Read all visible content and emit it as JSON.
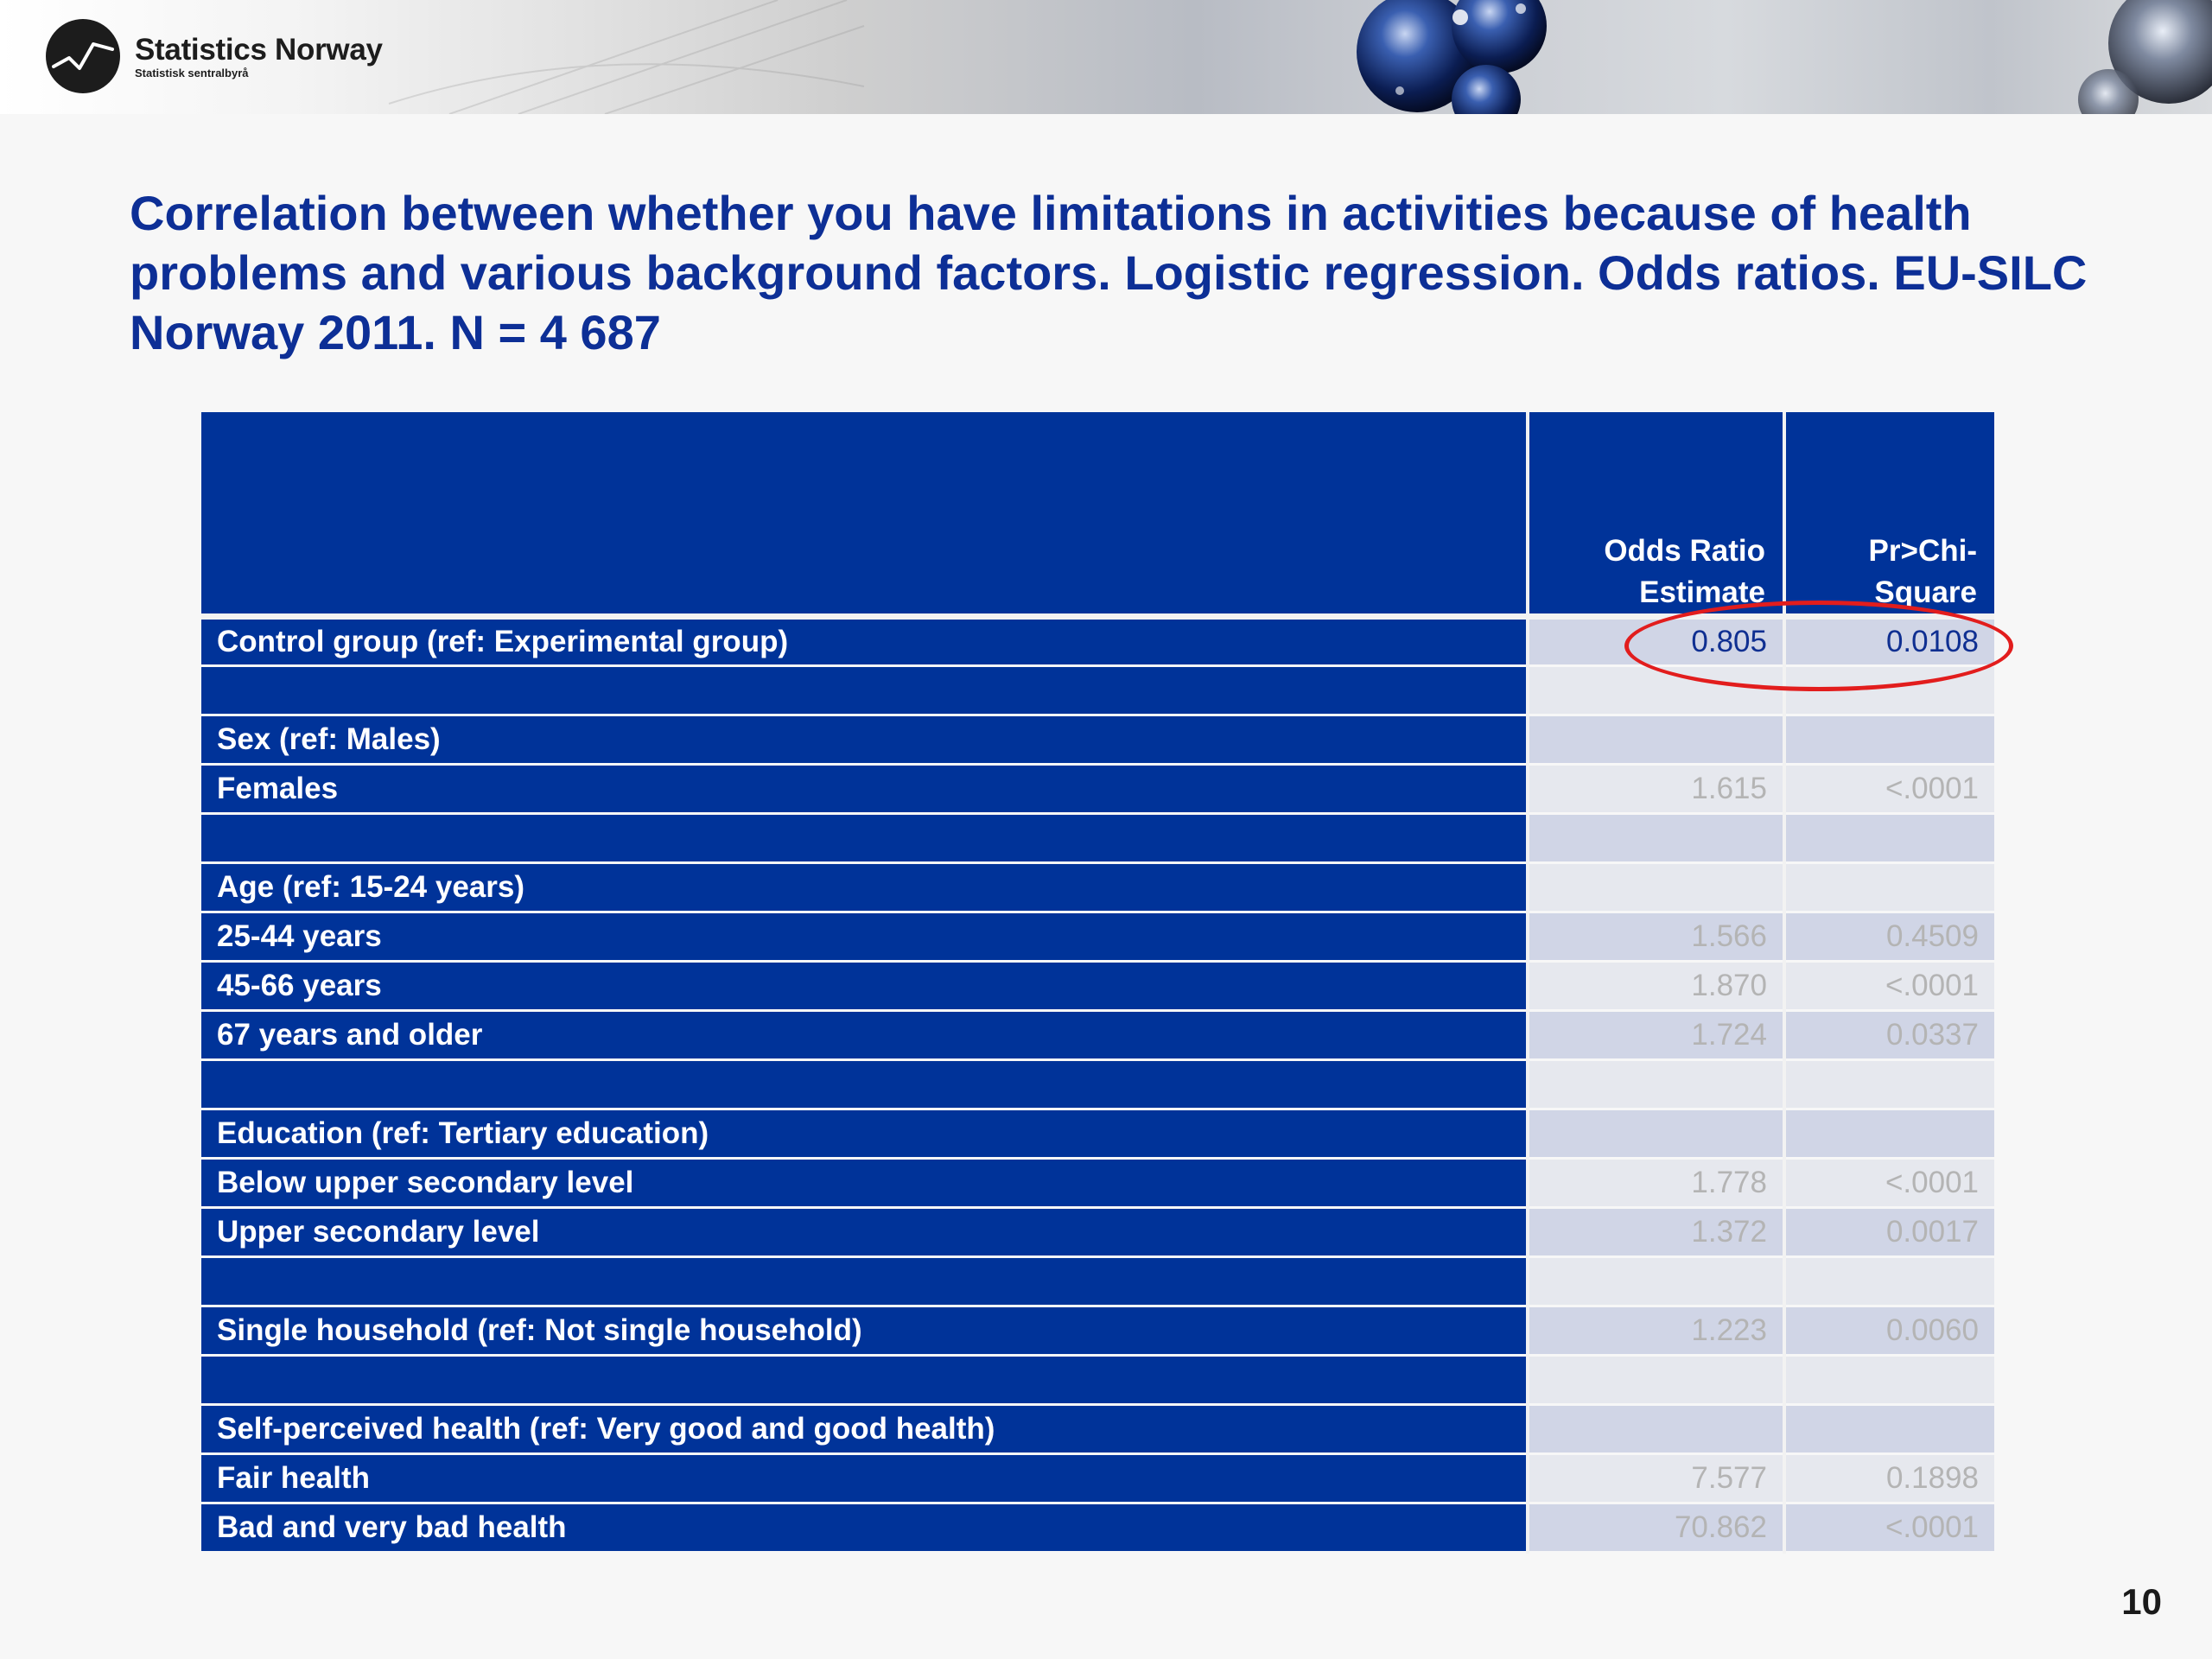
{
  "header": {
    "org_name": "Statistics Norway",
    "org_subtitle": "Statistisk sentralbyrå"
  },
  "slide": {
    "title": "Correlation between whether you have limitations in activities because of health problems and various background factors. Logistic regression. Odds ratios. EU-SILC Norway 2011.  N = 4 687",
    "page_number": "10"
  },
  "table": {
    "headers": [
      "",
      "Odds Ratio Estimate",
      "Pr>Chi-Square"
    ],
    "rows": [
      {
        "label": "Control group (ref: Experimental group)",
        "odds_ratio": "0.805",
        "p_value": "0.0108"
      },
      {
        "label": "",
        "odds_ratio": "",
        "p_value": ""
      },
      {
        "label": "Sex (ref: Males)",
        "odds_ratio": "",
        "p_value": ""
      },
      {
        "label": "Females",
        "odds_ratio": "1.615",
        "p_value": "<.0001"
      },
      {
        "label": "",
        "odds_ratio": "",
        "p_value": ""
      },
      {
        "label": "Age (ref: 15-24 years)",
        "odds_ratio": "",
        "p_value": ""
      },
      {
        "label": "25-44  years",
        "odds_ratio": "1.566",
        "p_value": "0.4509"
      },
      {
        "label": "45-66  years",
        "odds_ratio": "1.870",
        "p_value": "<.0001"
      },
      {
        "label": "67  years and older",
        "odds_ratio": "1.724",
        "p_value": "0.0337"
      },
      {
        "label": "",
        "odds_ratio": "",
        "p_value": ""
      },
      {
        "label": "Education (ref: Tertiary education)",
        "odds_ratio": "",
        "p_value": ""
      },
      {
        "label": "Below upper secondary level",
        "odds_ratio": "1.778",
        "p_value": "<.0001"
      },
      {
        "label": "Upper secondary level",
        "odds_ratio": "1.372",
        "p_value": "0.0017"
      },
      {
        "label": "",
        "odds_ratio": "",
        "p_value": ""
      },
      {
        "label": "Single household (ref: Not single household)",
        "odds_ratio": "1.223",
        "p_value": "0.0060"
      },
      {
        "label": "",
        "odds_ratio": "",
        "p_value": ""
      },
      {
        "label": "Self-perceived health (ref: Very good and good health)",
        "odds_ratio": "",
        "p_value": ""
      },
      {
        "label": "Fair health",
        "odds_ratio": "7.577",
        "p_value": "0.1898"
      },
      {
        "label": "Bad and very bad health",
        "odds_ratio": "70.862",
        "p_value": "<.0001"
      }
    ]
  },
  "colors": {
    "title": "#0d2f96",
    "table_blue": "#003399",
    "highlight_ring": "#e21d1d"
  }
}
